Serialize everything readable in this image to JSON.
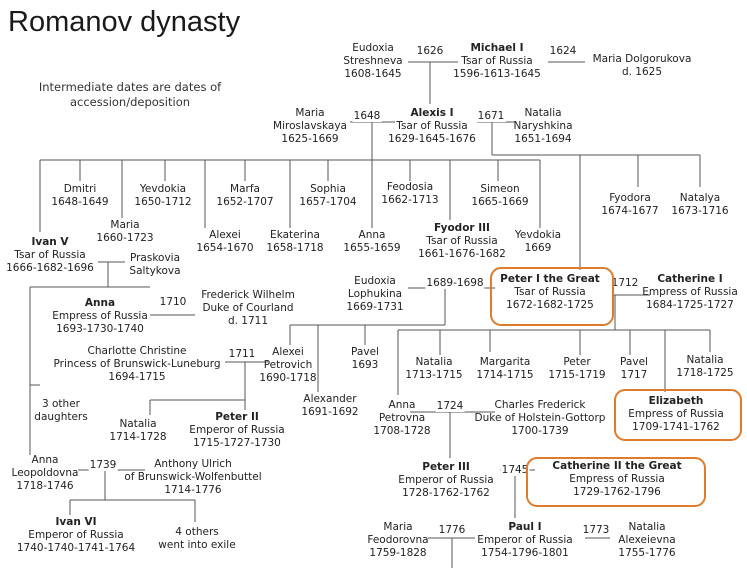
{
  "title": "Romanov dynasty",
  "note": "Intermediate dates are dates of accession/deposition",
  "highlight_color": "#e07b2c",
  "people": {
    "eudoxia_s": {
      "name": "Eudoxia\nStreshneva",
      "dates": "1608-1645"
    },
    "michael": {
      "name": "Michael I",
      "title": "Tsar of Russia",
      "dates": "1596-1613-1645"
    },
    "maria_d": {
      "name": "Maria Dolgorukova",
      "dates": "d. 1625"
    },
    "maria_m": {
      "name": "Maria\nMiroslavskaya",
      "dates": "1625-1669"
    },
    "alexis": {
      "name": "Alexis I",
      "title": "Tsar of Russia",
      "dates": "1629-1645-1676"
    },
    "natalia_n": {
      "name": "Natalia\nNaryshkina",
      "dates": "1651-1694"
    },
    "dmitri": {
      "name": "Dmitri",
      "dates": "1648-1649"
    },
    "yevdokia1": {
      "name": "Yevdokia",
      "dates": "1650-1712"
    },
    "marfa": {
      "name": "Marfa",
      "dates": "1652-1707"
    },
    "sophia": {
      "name": "Sophia",
      "dates": "1657-1704"
    },
    "feodosia": {
      "name": "Feodosia",
      "dates": "1662-1713"
    },
    "simeon": {
      "name": "Simeon",
      "dates": "1665-1669"
    },
    "fyodora": {
      "name": "Fyodora",
      "dates": "1674-1677"
    },
    "natalya": {
      "name": "Natalya",
      "dates": "1673-1716"
    },
    "maria_a": {
      "name": "Maria",
      "dates": "1660-1723"
    },
    "alexei_a": {
      "name": "Alexei",
      "dates": "1654-1670"
    },
    "ekaterina": {
      "name": "Ekaterina",
      "dates": "1658-1718"
    },
    "anna_a": {
      "name": "Anna",
      "dates": "1655-1659"
    },
    "fyodor3": {
      "name": "Fyodor III",
      "title": "Tsar of Russia",
      "dates": "1661-1676-1682"
    },
    "yevdokia2": {
      "name": "Yevdokia",
      "dates": "1669"
    },
    "ivan5": {
      "name": "Ivan V",
      "title": "Tsar of Russia",
      "dates": "1666-1682-1696"
    },
    "praskovia": {
      "name": "Praskovia\nSaltykova",
      "dates": ""
    },
    "eudoxia_l": {
      "name": "Eudoxia\nLophukina",
      "dates": "1669-1731"
    },
    "peter1": {
      "name": "Peter I the Great",
      "title": "Tsar of Russia",
      "dates": "1672-1682-1725"
    },
    "catherine1": {
      "name": "Catherine I",
      "title": "Empress of Russia",
      "dates": "1684-1725-1727"
    },
    "anna_i": {
      "name": "Anna",
      "title": "Empress of Russia",
      "dates": "1693-1730-1740"
    },
    "frederick_w": {
      "name": "Frederick Wilhelm\nDuke of Courland",
      "dates": "d. 1711"
    },
    "charlotte": {
      "name": "Charlotte Christine\nPrincess of Brunswick-Luneburg",
      "dates": "1694-1715"
    },
    "alexei_p": {
      "name": "Alexei\nPetrovich",
      "dates": "1690-1718"
    },
    "pavel_a": {
      "name": "Pavel",
      "dates": "1693"
    },
    "alexander": {
      "name": "Alexander",
      "dates": "1691-1692"
    },
    "natalia_b": {
      "name": "Natalia",
      "dates": "1713-1715"
    },
    "margarita": {
      "name": "Margarita",
      "dates": "1714-1715"
    },
    "peter_b": {
      "name": "Peter",
      "dates": "1715-1719"
    },
    "pavel_b": {
      "name": "Pavel",
      "dates": "1717"
    },
    "natalia_c": {
      "name": "Natalia",
      "dates": "1718-1725"
    },
    "elizabeth": {
      "name": "Elizabeth",
      "title": "Empress of Russia",
      "dates": "1709-1741-1762"
    },
    "other_daughters": {
      "name": "3 other\ndaughters",
      "dates": ""
    },
    "natalia_d": {
      "name": "Natalia",
      "dates": "1714-1728"
    },
    "peter2": {
      "name": "Peter II",
      "title": "Emperor of Russia",
      "dates": "1715-1727-1730"
    },
    "anna_p": {
      "name": "Anna\nPetrovna",
      "dates": "1708-1728"
    },
    "charles_f": {
      "name": "Charles Frederick\nDuke of Holstein-Gottorp",
      "dates": "1700-1739"
    },
    "anna_leo": {
      "name": "Anna\nLeopoldovna",
      "dates": "1718-1746"
    },
    "anthony": {
      "name": "Anthony Ulrich\nof Brunswick-Wolfenbuttel",
      "dates": "1714-1776"
    },
    "peter3": {
      "name": "Peter III",
      "title": "Emperor of Russia",
      "dates": "1728-1762-1762"
    },
    "catherine2": {
      "name": "Catherine II the Great",
      "title": "Empress of Russia",
      "dates": "1729-1762-1796"
    },
    "ivan6": {
      "name": "Ivan VI",
      "title": "Emperor of Russia",
      "dates": "1740-1740-1741-1764"
    },
    "others_exile": {
      "name": "4 others\nwent into exile",
      "dates": ""
    },
    "maria_f": {
      "name": "Maria\nFeodorovna",
      "dates": "1759-1828"
    },
    "paul1": {
      "name": "Paul I",
      "title": "Emperor of Russia",
      "dates": "1754-1796-1801"
    },
    "natalia_a": {
      "name": "Natalia\nAlexeievna",
      "dates": "1755-1776"
    }
  },
  "marriage_years": {
    "y1626": "1626",
    "y1624": "1624",
    "y1648": "1648",
    "y1671": "1671",
    "y1689": "1689-1698",
    "y1712": "1712",
    "y1710": "1710",
    "y1711": "1711",
    "y1724": "1724",
    "y1739": "1739",
    "y1745": "1745",
    "y1776": "1776",
    "y1773": "1773"
  }
}
